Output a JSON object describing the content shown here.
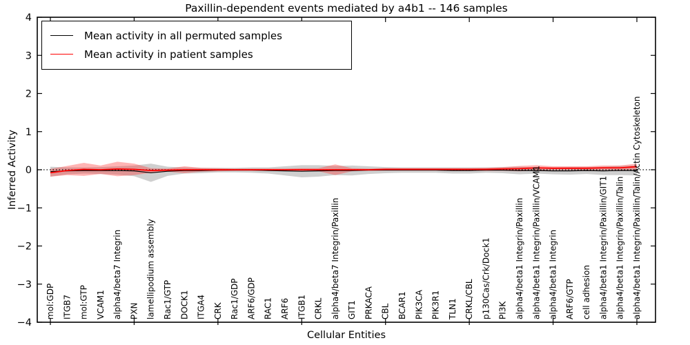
{
  "window": {
    "title": "Paxillin-dependent events mediated by a4b1 -- 146 samples"
  },
  "chart_data": {
    "type": "line",
    "title": "Paxillin-dependent events mediated by a4b1 -- 146 samples",
    "xlabel": "Cellular Entities",
    "ylabel": "Inferred Activity",
    "ylim": [
      -4,
      4
    ],
    "ytick_labels": [
      "−4",
      "−3",
      "−2",
      "−1",
      "0",
      "1",
      "2",
      "3",
      "4"
    ],
    "grid": false,
    "legend_position": "upper left",
    "zero_line_style": "dotted",
    "sample_count": "146",
    "categories": [
      "mol:GDP",
      "ITGB7",
      "mol:GTP",
      "VCAM1",
      "alpha4/beta7 Integrin",
      "PXN",
      "lamellipodium assembly",
      "Rac1/GTP",
      "DOCK1",
      "ITGA4",
      "CRK",
      "Rac1/GDP",
      "ARF6/GDP",
      "RAC1",
      "ARF6",
      "ITGB1",
      "CRKL",
      "alpha4/beta7 Integrin/Paxillin",
      "GIT1",
      "PRKACA",
      "CBL",
      "BCAR1",
      "PIK3CA",
      "PIK3R1",
      "TLN1",
      "CRKL/CBL",
      "p130Cas/Crk/Dock1",
      "PI3K",
      "alpha4/beta1 Integrin/Paxillin",
      "alpha4/beta1 Integrin/Paxillin/VCAM1",
      "alpha4/beta1 Integrin",
      "ARF6/GTP",
      "cell adhesion",
      "alpha4/beta1 Integrin/Paxillin/GIT1",
      "alpha4/beta1 Integrin/Paxillin/Talin",
      "alpha4/beta1 Integrin/Paxillin/Talin/Actin Cytoskeleton"
    ],
    "series": [
      {
        "name": "Mean activity in all permuted samples",
        "color": "#000000",
        "band_color": "rgba(130,130,130,0.38)",
        "values": [
          -0.05,
          -0.03,
          -0.02,
          -0.02,
          -0.02,
          -0.03,
          -0.08,
          -0.04,
          -0.02,
          -0.02,
          -0.01,
          -0.01,
          -0.01,
          -0.02,
          -0.03,
          -0.04,
          -0.03,
          -0.02,
          -0.02,
          -0.01,
          -0.01,
          -0.01,
          -0.01,
          -0.01,
          -0.02,
          -0.02,
          -0.01,
          -0.01,
          -0.02,
          -0.02,
          -0.03,
          -0.03,
          -0.02,
          -0.03,
          -0.02,
          -0.02
        ],
        "band": [
          0.13,
          0.09,
          0.08,
          0.09,
          0.11,
          0.14,
          0.24,
          0.12,
          0.08,
          0.07,
          0.06,
          0.06,
          0.07,
          0.08,
          0.12,
          0.16,
          0.15,
          0.12,
          0.13,
          0.1,
          0.08,
          0.07,
          0.07,
          0.07,
          0.08,
          0.08,
          0.07,
          0.08,
          0.1,
          0.08,
          0.09,
          0.1,
          0.09,
          0.11,
          0.12,
          0.13
        ]
      },
      {
        "name": "Mean activity in patient samples",
        "color": "#ff0000",
        "band_color": "rgba(255,40,40,0.35)",
        "values": [
          -0.08,
          -0.02,
          0.01,
          0.0,
          0.02,
          0.01,
          -0.02,
          -0.01,
          0.0,
          0.0,
          0.0,
          0.0,
          0.0,
          0.0,
          0.0,
          0.0,
          0.0,
          0.0,
          0.0,
          0.0,
          0.01,
          0.01,
          0.01,
          0.01,
          0.01,
          0.01,
          0.01,
          0.02,
          0.03,
          0.05,
          0.04,
          0.04,
          0.04,
          0.05,
          0.05,
          0.08
        ],
        "band": [
          0.1,
          0.12,
          0.17,
          0.11,
          0.19,
          0.15,
          0.06,
          0.04,
          0.09,
          0.05,
          0.04,
          0.03,
          0.03,
          0.03,
          0.03,
          0.04,
          0.04,
          0.14,
          0.04,
          0.03,
          0.03,
          0.03,
          0.03,
          0.03,
          0.03,
          0.03,
          0.04,
          0.05,
          0.07,
          0.07,
          0.05,
          0.05,
          0.05,
          0.06,
          0.06,
          0.08
        ]
      }
    ]
  },
  "legend": {
    "entries": [
      {
        "label": "Mean activity in all permuted samples",
        "color": "#000000"
      },
      {
        "label": "Mean activity in patient samples",
        "color": "#ff0000"
      }
    ]
  }
}
